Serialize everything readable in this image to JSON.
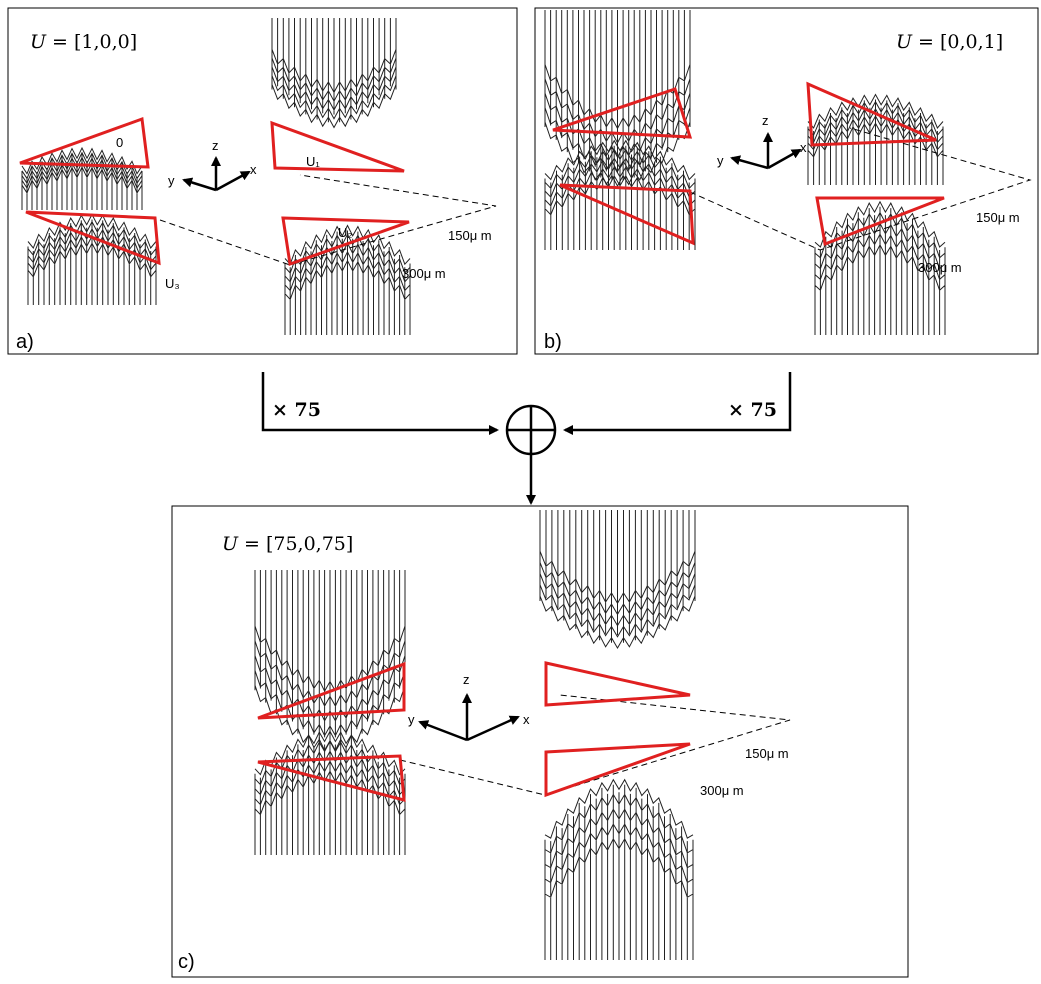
{
  "panel_a": {
    "label": "a)",
    "u_label": "U",
    "u_value": "= [1,0,0]",
    "tri_0": "0",
    "tri_1": "U₁",
    "tri_2": "U₂",
    "tri_3": "U₃",
    "dim_150": "150μ m",
    "dim_300": "300μ m"
  },
  "panel_b": {
    "label": "b)",
    "u_label": "U",
    "u_value": "= [0,0,1]",
    "dim_150": "150μ m",
    "dim_300": "300μ m"
  },
  "panel_c": {
    "label": "c)",
    "u_label": "U",
    "u_value": "= [75,0,75]",
    "dim_150": "150μ m",
    "dim_300": "300μ m"
  },
  "axes": {
    "x": "x",
    "y": "y",
    "z": "z"
  },
  "combine": {
    "left_factor": "× 75",
    "right_factor": "× 75"
  },
  "colors": {
    "triangle": "#e02020",
    "frame": "#000000",
    "mesh": "#222222"
  }
}
